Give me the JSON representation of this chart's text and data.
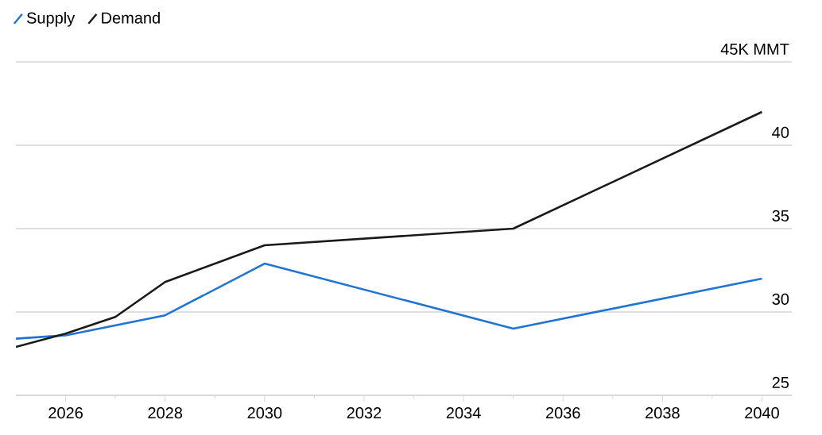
{
  "chart_data": {
    "type": "line",
    "xlim": [
      2025,
      2040.6
    ],
    "xticks": [
      2026,
      2028,
      2030,
      2032,
      2034,
      2036,
      2038,
      2040
    ],
    "ylim": [
      25,
      45
    ],
    "yticks": [
      25,
      30,
      35,
      40,
      {
        "value": 45,
        "label": "45K MMT"
      }
    ],
    "grid": "y",
    "legend": "top left",
    "marker": "none",
    "line_style": "solid",
    "series": [
      {
        "name": "Supply",
        "color": "#1f74d6",
        "x": [
          2025,
          2026,
          2028,
          2030,
          2035,
          2040
        ],
        "values": [
          28.4,
          28.6,
          29.8,
          32.9,
          29.0,
          32.0
        ]
      },
      {
        "name": "Demand",
        "color": "#1a1a1a",
        "x": [
          2025,
          2026,
          2027,
          2028,
          2030,
          2035,
          2040
        ],
        "values": [
          27.9,
          28.7,
          29.7,
          31.8,
          34.0,
          35.0,
          42.0
        ]
      }
    ]
  }
}
